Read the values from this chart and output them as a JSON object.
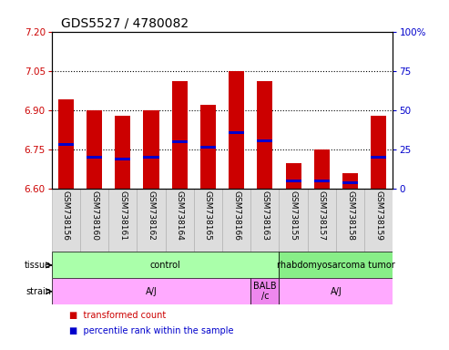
{
  "title": "GDS5527 / 4780082",
  "samples": [
    "GSM738156",
    "GSM738160",
    "GSM738161",
    "GSM738162",
    "GSM738164",
    "GSM738165",
    "GSM738166",
    "GSM738163",
    "GSM738155",
    "GSM738157",
    "GSM738158",
    "GSM738159"
  ],
  "bar_bottoms": [
    6.6,
    6.6,
    6.6,
    6.6,
    6.6,
    6.6,
    6.6,
    6.6,
    6.6,
    6.6,
    6.6,
    6.6
  ],
  "bar_tops": [
    6.94,
    6.9,
    6.88,
    6.9,
    7.01,
    6.92,
    7.05,
    7.01,
    6.7,
    6.75,
    6.66,
    6.88
  ],
  "blue_positions": [
    6.765,
    6.715,
    6.71,
    6.715,
    6.775,
    6.755,
    6.81,
    6.78,
    6.625,
    6.625,
    6.62,
    6.715
  ],
  "blue_heights": [
    0.01,
    0.01,
    0.01,
    0.01,
    0.01,
    0.01,
    0.01,
    0.01,
    0.01,
    0.01,
    0.01,
    0.01
  ],
  "bar_color": "#cc0000",
  "blue_color": "#0000cc",
  "ylim": [
    6.6,
    7.2
  ],
  "y2lim": [
    0,
    100
  ],
  "yticks": [
    6.6,
    6.75,
    6.9,
    7.05,
    7.2
  ],
  "y2ticks": [
    0,
    25,
    50,
    75,
    100
  ],
  "hline_values": [
    6.75,
    6.9,
    7.05
  ],
  "tissue_groups": [
    {
      "label": "control",
      "start": 0,
      "end": 8,
      "color": "#aaffaa"
    },
    {
      "label": "rhabdomyosarcoma tumor",
      "start": 8,
      "end": 12,
      "color": "#88ee88"
    }
  ],
  "strain_groups": [
    {
      "label": "A/J",
      "start": 0,
      "end": 7,
      "color": "#ffaaff"
    },
    {
      "label": "BALB\n/c",
      "start": 7,
      "end": 8,
      "color": "#ee88ee"
    },
    {
      "label": "A/J",
      "start": 8,
      "end": 12,
      "color": "#ffaaff"
    }
  ],
  "bar_width": 0.55,
  "title_fontsize": 10,
  "tick_fontsize": 7.5,
  "sample_fontsize": 6.5,
  "ylabel_color_left": "#cc0000",
  "ylabel_color_right": "#0000cc",
  "background_color": "#ffffff",
  "plot_bg_color": "#ffffff"
}
